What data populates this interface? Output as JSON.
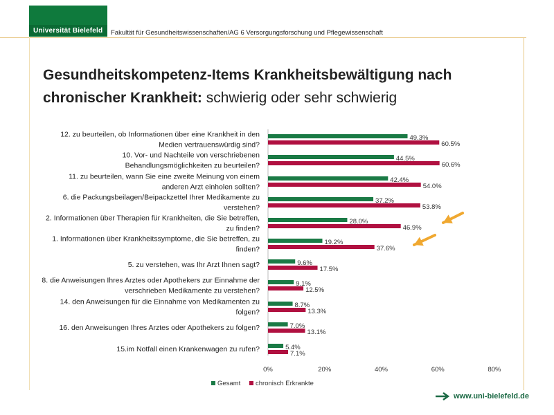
{
  "header": {
    "logo_text": "Universität Bielefeld",
    "faculty": "Fakultät für Gesundheitswissenschaften/AG 6 Versorgungsforschung und Pflegewissenschaft"
  },
  "title": {
    "bold": "Gesundheitskompetenz-Items Krankheitsbewältigung nach chronischer Krankheit:",
    "normal": " schwierig oder sehr schwierig"
  },
  "footer": {
    "url": "www.uni-bielefeld.de"
  },
  "colors": {
    "gesamt": "#1a7a45",
    "chronisch": "#b01040",
    "arrow": "#f0a830",
    "logo": "#0f7a3d"
  },
  "chart_data": {
    "type": "bar",
    "orientation": "horizontal",
    "title": "Gesundheitskompetenz-Items Krankheitsbewältigung nach chronischer Krankheit: schwierig oder sehr schwierig",
    "xlim": [
      0,
      80
    ],
    "xticks": [
      "0%",
      "20%",
      "40%",
      "60%",
      "80%"
    ],
    "tick_values": [
      0,
      20,
      40,
      60,
      80
    ],
    "legend_position": "bottom",
    "categories": [
      [
        "12. zu beurteilen, ob Informationen über eine Krankheit in den",
        "Medien vertrauenswürdig sind?"
      ],
      [
        "10. Vor- und Nachteile von verschriebenen",
        "Behandlungsmöglichkeiten zu beurteilen?"
      ],
      [
        "11. zu beurteilen, wann Sie eine zweite Meinung von einem",
        "anderen Arzt einholen sollten?"
      ],
      [
        "6. die Packungsbeilagen/Beipackzettel Ihrer Medikamente zu",
        "verstehen?"
      ],
      [
        "2. Informationen über Therapien für Krankheiten, die Sie betreffen,",
        "zu finden?"
      ],
      [
        "1. Informationen über Krankheitssymptome, die Sie betreffen, zu",
        "finden?"
      ],
      [
        "5. zu verstehen, was Ihr Arzt Ihnen sagt?"
      ],
      [
        "8. die Anweisungen Ihres Arztes oder Apothekers zur Einnahme der",
        "verschrieben Medikamente zu verstehen?"
      ],
      [
        "14. den Anweisungen für die Einnahme von Medikamenten zu",
        "folgen?"
      ],
      [
        "16. den Anweisungen Ihres Arztes oder Apothekers zu folgen?"
      ],
      [
        "15.im Notfall einen Krankenwagen zu rufen?"
      ]
    ],
    "series": [
      {
        "name": "Gesamt",
        "values": [
          49.3,
          44.5,
          42.4,
          37.2,
          28.0,
          19.2,
          9.6,
          9.1,
          8.7,
          7.0,
          5.4
        ],
        "labels": [
          "49.3%",
          "44.5%",
          "42.4%",
          "37.2%",
          "28.0%",
          "19.2%",
          "9.6%",
          "9.1%",
          "8.7%",
          "7.0%",
          "5.4%"
        ]
      },
      {
        "name": "chronisch Erkrankte",
        "values": [
          60.5,
          60.6,
          54.0,
          53.8,
          46.9,
          37.6,
          17.5,
          12.5,
          13.3,
          13.1,
          7.1
        ],
        "labels": [
          "60.5%",
          "60.6%",
          "54.0%",
          "53.8%",
          "46.9%",
          "37.6%",
          "17.5%",
          "12.5%",
          "13.3%",
          "13.1%",
          "7.1%"
        ]
      }
    ],
    "annotations": [
      "arrow pointing to item 2",
      "arrow pointing to item 1"
    ]
  }
}
